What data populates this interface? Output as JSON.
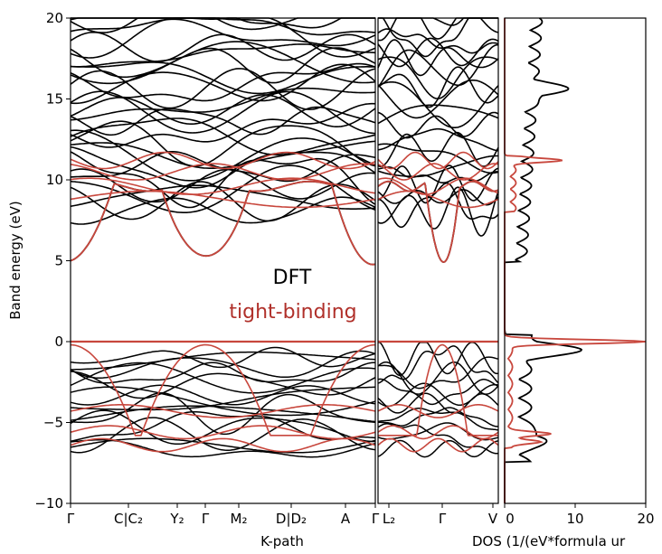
{
  "chart_data": {
    "type": "line",
    "panels": [
      {
        "id": "kpath-main",
        "xlabel": "K-path",
        "ticks": [
          "Γ",
          "C|C₂",
          "Y₂",
          "Γ",
          "M₂",
          "D|D₂",
          "A",
          "Γ"
        ]
      },
      {
        "id": "kpath-second",
        "ticks": [
          "L₂",
          "Γ",
          "V"
        ]
      },
      {
        "id": "dos",
        "xlabel": "DOS (1/(eV*formula ur",
        "xlim": [
          0,
          20
        ],
        "xticks": [
          "0",
          "10",
          "20"
        ]
      }
    ],
    "ylabel": "Band energy (eV)",
    "ylim": [
      -10,
      20
    ],
    "yticks": [
      "−10",
      "−5",
      "0",
      "5",
      "10",
      "15",
      "20"
    ],
    "legend": {
      "placement": "center",
      "entries": [
        {
          "label": "DFT",
          "color": "#000000"
        },
        {
          "label": "tight-binding",
          "color": "#b0302a"
        }
      ]
    },
    "features": {
      "valence_band_max_eV": 0,
      "conduction_band_min_eV": 5,
      "tb_conduction_top_eV": 11.2,
      "tb_valence_bottom_eV": -6.4,
      "dft_bands_conduction_range_eV": [
        5,
        20
      ],
      "dft_bands_valence_range_eV": [
        -7.2,
        0
      ],
      "dos_tb_peaks": [
        {
          "energy": 0,
          "value": 20
        },
        {
          "energy": 11.2,
          "value": 6.8
        },
        {
          "energy": -5.7,
          "value": 5.5
        },
        {
          "energy": -6.2,
          "value": 4.5
        }
      ],
      "dos_dft_peaks": [
        {
          "energy": 15.6,
          "value": 6.3
        },
        {
          "energy": -0.5,
          "value": 10.2
        },
        {
          "energy": -6.0,
          "value": 4.0
        }
      ]
    },
    "colors": {
      "dft": "#000000",
      "tb": "#c8473d",
      "tb_text": "#b0302a"
    }
  }
}
